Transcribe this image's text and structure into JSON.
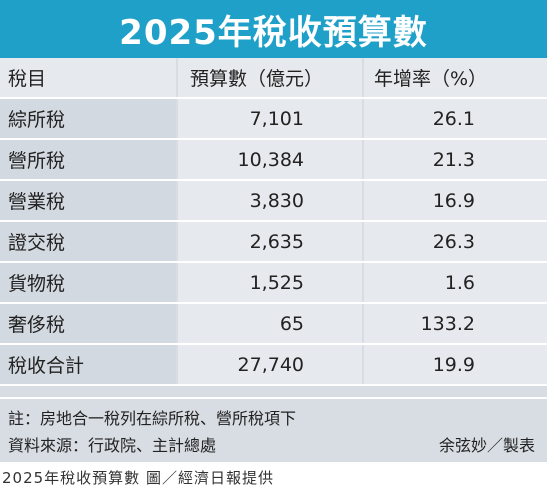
{
  "chart_data": {
    "type": "table",
    "title": "2025年稅收預算數",
    "columns": [
      "稅目",
      "預算數（億元）",
      "年增率（%）"
    ],
    "rows": [
      {
        "name": "綜所稅",
        "budget": "7,101",
        "growth": "26.1"
      },
      {
        "name": "營所稅",
        "budget": "10,384",
        "growth": "21.3"
      },
      {
        "name": "營業稅",
        "budget": "3,830",
        "growth": "16.9"
      },
      {
        "name": "證交稅",
        "budget": "2,635",
        "growth": "26.3"
      },
      {
        "name": "貨物稅",
        "budget": "1,525",
        "growth": "1.6"
      },
      {
        "name": "奢侈稅",
        "budget": "65",
        "growth": "133.2"
      },
      {
        "name": "稅收合計",
        "budget": "27,740",
        "growth": "19.9"
      }
    ]
  },
  "notes": {
    "note": "註：房地合一稅列在綜所稅、營所稅項下",
    "source": "資料來源：行政院、主計總處",
    "credit": "余弦妙／製表"
  },
  "caption": "2025年稅收預算數 圖／經濟日報提供",
  "colors": {
    "title_bg": "#1fa0c9",
    "table_bg": "#e6e9ed",
    "first_col_bg": "#d3d9e0"
  }
}
